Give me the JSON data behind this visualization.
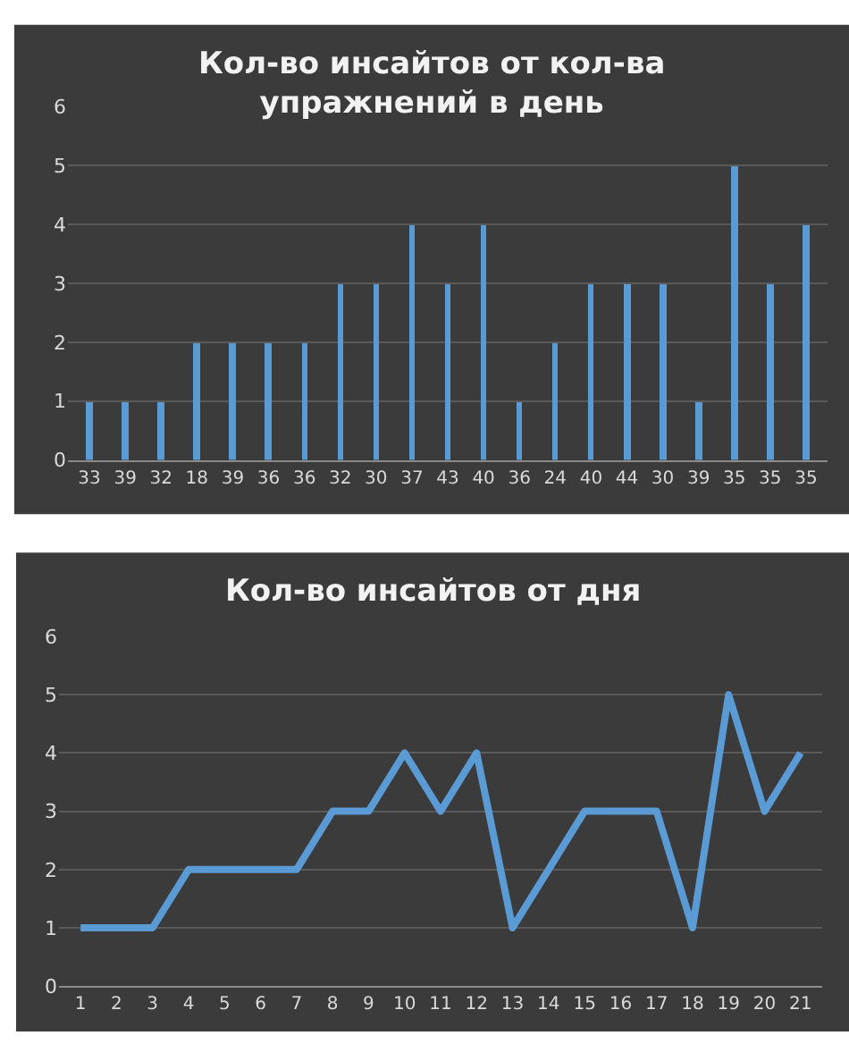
{
  "chart_data": [
    {
      "type": "bar",
      "title": "Кол-во инсайтов от кол-ва\nупражнений в день",
      "categories": [
        "33",
        "39",
        "32",
        "18",
        "39",
        "36",
        "36",
        "32",
        "30",
        "37",
        "43",
        "40",
        "36",
        "24",
        "40",
        "44",
        "30",
        "39",
        "35",
        "35",
        "35"
      ],
      "series": [
        {
          "color": "#5b9bd5",
          "values": [
            1,
            1,
            1,
            2,
            2,
            2,
            2,
            3,
            3,
            4,
            3,
            4,
            1,
            2,
            3,
            3,
            3,
            1,
            5,
            3,
            4
          ]
        }
      ],
      "ylim": [
        0,
        6
      ],
      "yticks": [
        0,
        1,
        2,
        3,
        4,
        5,
        6
      ],
      "grid": "y"
    },
    {
      "type": "line",
      "title": "Кол-во инсайтов от дня",
      "categories": [
        "1",
        "2",
        "3",
        "4",
        "5",
        "6",
        "7",
        "8",
        "9",
        "10",
        "11",
        "12",
        "13",
        "14",
        "15",
        "16",
        "17",
        "18",
        "19",
        "20",
        "21"
      ],
      "series": [
        {
          "color": "#5b9bd5",
          "values": [
            1,
            1,
            1,
            2,
            2,
            2,
            2,
            3,
            3,
            4,
            3,
            4,
            1,
            2,
            3,
            3,
            3,
            1,
            5,
            3,
            4
          ]
        }
      ],
      "ylim": [
        0,
        6
      ],
      "yticks": [
        0,
        1,
        2,
        3,
        4,
        5,
        6
      ],
      "grid": "y",
      "marker": "none",
      "line_style": "solid"
    }
  ]
}
